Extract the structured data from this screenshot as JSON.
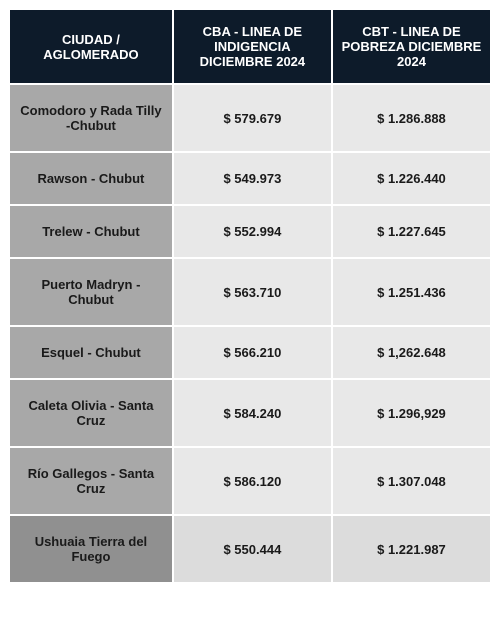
{
  "table": {
    "headers": {
      "col1": "CIUDAD / AGLOMERADO",
      "col2": "CBA - LINEA DE INDIGENCIA DICIEMBRE 2024",
      "col3": "CBT - LINEA DE POBREZA DICIEMBRE 2024"
    },
    "rows": [
      {
        "city": "Comodoro y Rada Tilly -Chubut",
        "cba": "$ 579.679",
        "cbt": "$ 1.286.888",
        "highlight": false
      },
      {
        "city": "Rawson - Chubut",
        "cba": "$ 549.973",
        "cbt": "$ 1.226.440",
        "highlight": false
      },
      {
        "city": "Trelew - Chubut",
        "cba": "$ 552.994",
        "cbt": "$ 1.227.645",
        "highlight": false
      },
      {
        "city": "Puerto Madryn - Chubut",
        "cba": "$ 563.710",
        "cbt": "$ 1.251.436",
        "highlight": false
      },
      {
        "city": "Esquel - Chubut",
        "cba": "$  566.210",
        "cbt": "$ 1,262.648",
        "highlight": false
      },
      {
        "city": "Caleta Olivia - Santa Cruz",
        "cba": "$  584.240",
        "cbt": "$ 1.296,929",
        "highlight": false
      },
      {
        "city": "Río Gallegos - Santa Cruz",
        "cba": "$  586.120",
        "cbt": "$ 1.307.048",
        "highlight": false
      },
      {
        "city": "Ushuaia Tierra del Fuego",
        "cba": "$ 550.444",
        "cbt": "$ 1.221.987",
        "highlight": true
      }
    ],
    "colors": {
      "header_bg": "#0d1b2a",
      "header_text": "#ffffff",
      "city_bg": "#a8a8a8",
      "value_bg": "#e8e8e8",
      "highlight_city_bg": "#909090",
      "highlight_value_bg": "#dcdcdc",
      "border": "#ffffff",
      "text": "#1a1a1a"
    },
    "typography": {
      "header_fontsize": 13,
      "cell_fontsize": 13,
      "font_weight": "bold"
    }
  }
}
